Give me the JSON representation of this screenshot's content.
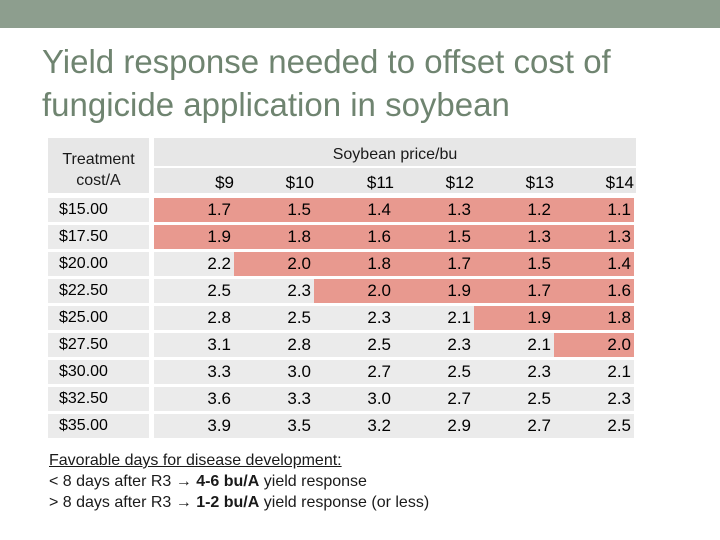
{
  "title": "Yield response needed to offset cost of fungicide application in soybean",
  "table": {
    "treatment_header": [
      "Treatment",
      "cost/A"
    ],
    "price_header": "Soybean price/bu",
    "prices": [
      "$9",
      "$10",
      "$11",
      "$12",
      "$13",
      "$14"
    ],
    "rows": [
      {
        "cost": "$15.00",
        "values": [
          "1.7",
          "1.5",
          "1.4",
          "1.3",
          "1.2",
          "1.1"
        ]
      },
      {
        "cost": "$17.50",
        "values": [
          "1.9",
          "1.8",
          "1.6",
          "1.5",
          "1.3",
          "1.3"
        ]
      },
      {
        "cost": "$20.00",
        "values": [
          "2.2",
          "2.0",
          "1.8",
          "1.7",
          "1.5",
          "1.4"
        ]
      },
      {
        "cost": "$22.50",
        "values": [
          "2.5",
          "2.3",
          "2.0",
          "1.9",
          "1.7",
          "1.6"
        ]
      },
      {
        "cost": "$25.00",
        "values": [
          "2.8",
          "2.5",
          "2.3",
          "2.1",
          "1.9",
          "1.8"
        ]
      },
      {
        "cost": "$27.50",
        "values": [
          "3.1",
          "2.8",
          "2.5",
          "2.3",
          "2.1",
          "2.0"
        ]
      },
      {
        "cost": "$30.00",
        "values": [
          "3.3",
          "3.0",
          "2.7",
          "2.5",
          "2.3",
          "2.1"
        ]
      },
      {
        "cost": "$32.50",
        "values": [
          "3.6",
          "3.3",
          "3.0",
          "2.7",
          "2.5",
          "2.3"
        ]
      },
      {
        "cost": "$35.00",
        "values": [
          "3.9",
          "3.5",
          "3.2",
          "2.9",
          "2.7",
          "2.5"
        ]
      }
    ],
    "highlight": [
      [
        1,
        1,
        1,
        1,
        1,
        1
      ],
      [
        1,
        1,
        1,
        1,
        1,
        1
      ],
      [
        0,
        1,
        1,
        1,
        1,
        1
      ],
      [
        0,
        0,
        1,
        1,
        1,
        1
      ],
      [
        0,
        0,
        0,
        0,
        1,
        1
      ],
      [
        0,
        0,
        0,
        0,
        0,
        1
      ],
      [
        0,
        0,
        0,
        0,
        0,
        0
      ],
      [
        0,
        0,
        0,
        0,
        0,
        0
      ],
      [
        0,
        0,
        0,
        0,
        0,
        0
      ]
    ]
  },
  "notes": {
    "heading": "Favorable days for disease development:",
    "line1": {
      "prefix": "< 8 days after R3 ",
      "bold": "4-6 bu/A",
      "suffix": " yield response"
    },
    "line2": {
      "prefix": "> 8 days after R3 ",
      "bold": "1-2 bu/A",
      "suffix": " yield response (or less)"
    }
  },
  "colors": {
    "highlight": "#e8998f",
    "plain": "#ebebeb",
    "header": "#e7e7e7",
    "topbar": "#8d9e8e",
    "title": "#6f8470"
  }
}
